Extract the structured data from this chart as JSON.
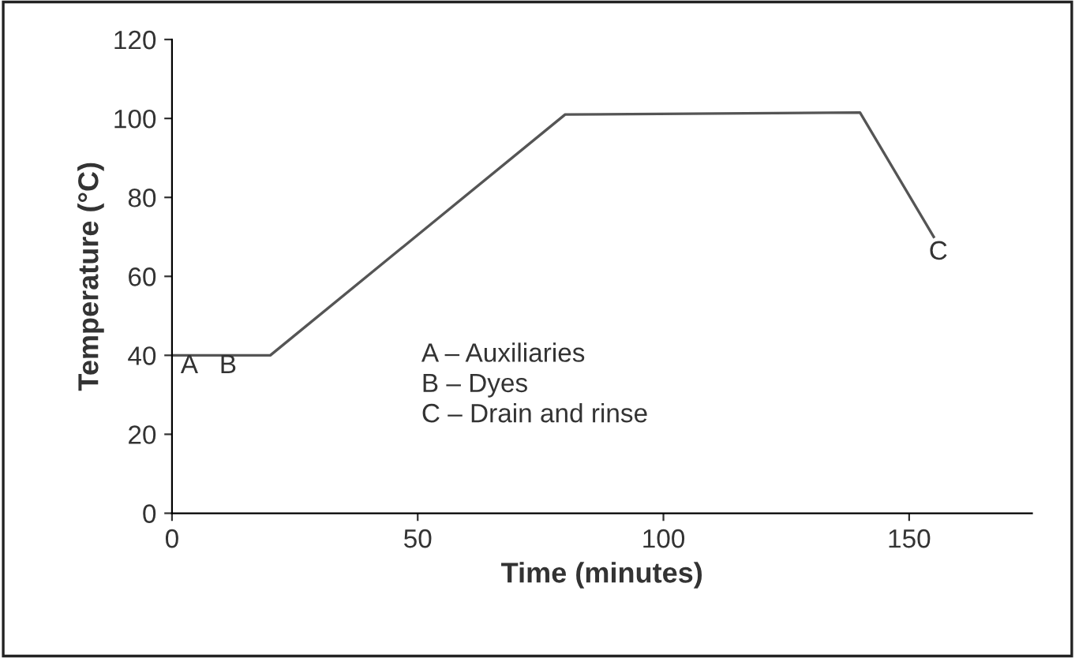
{
  "chart_data": {
    "type": "line",
    "xlabel": "Time (minutes)",
    "ylabel": "Temperature (°C)",
    "x": [
      0,
      20,
      80,
      140,
      155
    ],
    "series": [
      {
        "color": "#555555",
        "values": [
          40,
          40,
          101,
          101.5,
          70
        ]
      }
    ],
    "xlim": [
      0,
      175
    ],
    "xticks": [
      0,
      50,
      100,
      150
    ],
    "ylim": [
      0,
      120
    ],
    "yticks": [
      0,
      20,
      40,
      60,
      80,
      100,
      120
    ],
    "grid": false,
    "legend": false,
    "marker": "none",
    "line_style": "solid",
    "annotations": [
      "A",
      "B",
      "C",
      "A – Auxiliaries\nB – Dyes\nC – Drain and rinse"
    ]
  }
}
